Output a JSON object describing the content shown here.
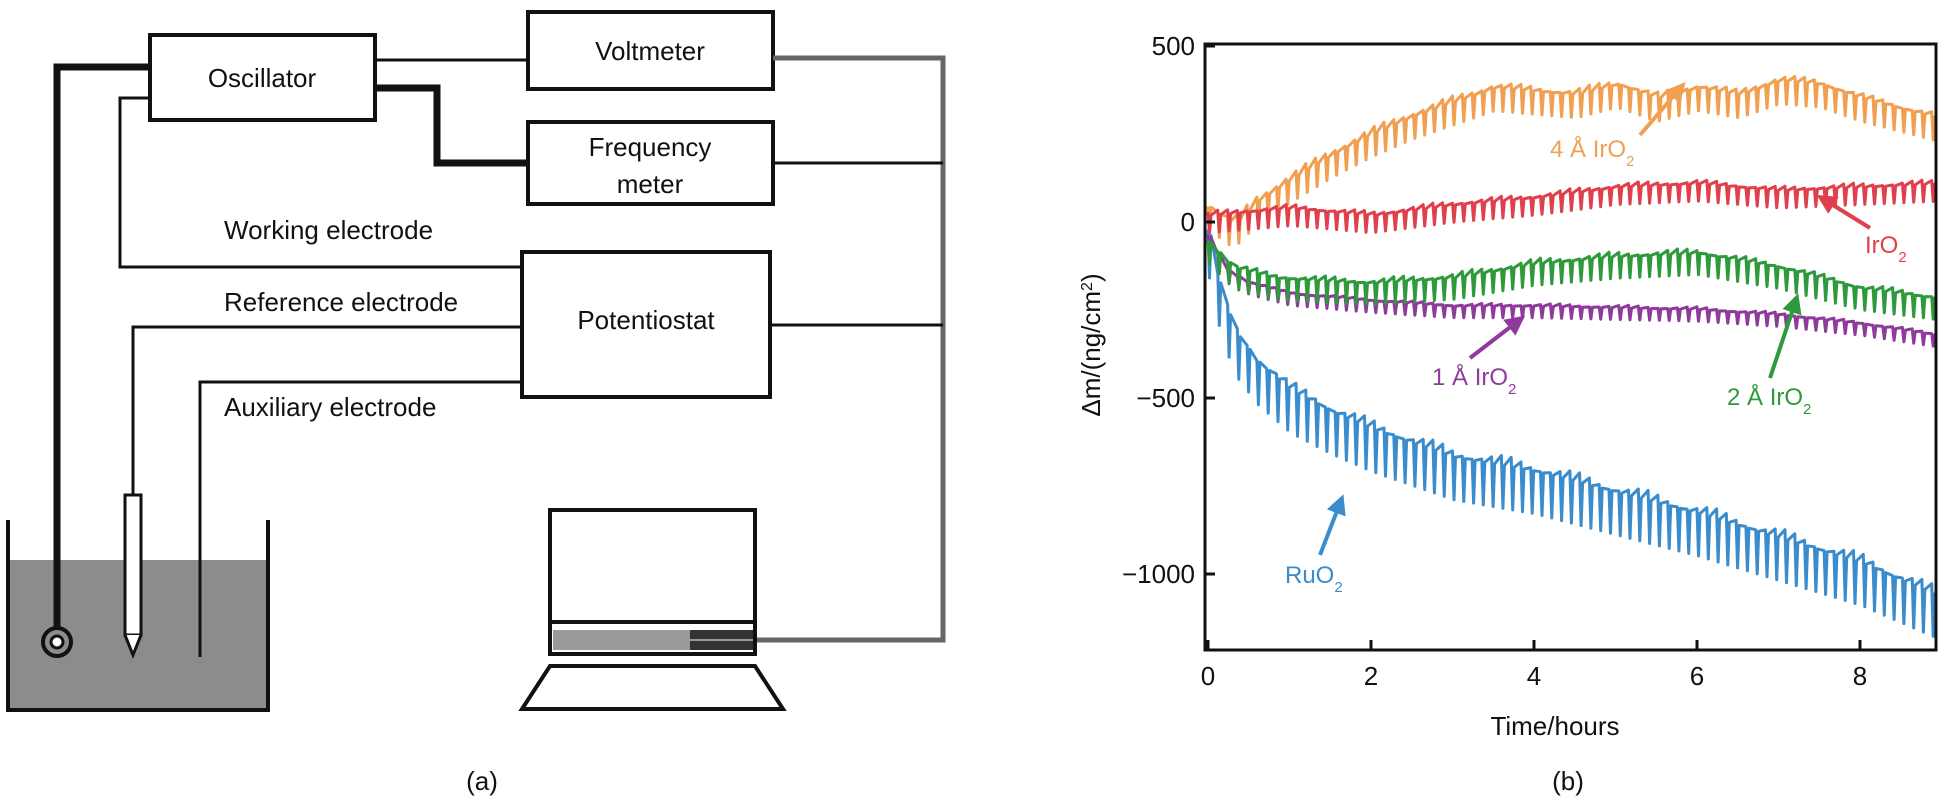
{
  "panel_a": {
    "label": "(a)",
    "oscillator": "Oscillator",
    "voltmeter": "Voltmeter",
    "frequency_meter_line1": "Frequency",
    "frequency_meter_line2": "meter",
    "working_electrode": "Working electrode",
    "reference_electrode": "Reference electrode",
    "potentiostat": "Potentiostat",
    "auxiliary_electrode": "Auxiliary electrode"
  },
  "panel_b": {
    "label": "(b)"
  },
  "colors": {
    "ruo2": "#3a8ccc",
    "iro2_1a": "#8e3b9c",
    "iro2_2a": "#2e9a3c",
    "iro2_4a": "#f0a050",
    "iro2": "#e0404c",
    "solution": "#8c8c8c"
  },
  "chart_data": {
    "type": "line",
    "title": "",
    "xlabel": "Time/hours",
    "ylabel": "Δm/(ng/cm²)",
    "ylabel_parts": {
      "prefix": "Δm/(ng/cm",
      "sup": "2",
      "suffix": ")"
    },
    "xlim": [
      0,
      9
    ],
    "ylim": [
      -1250,
      500
    ],
    "xticks": [
      0,
      2,
      4,
      6,
      8
    ],
    "xtick_labels": [
      "0",
      "2",
      "4",
      "6",
      "8"
    ],
    "yticks": [
      500,
      0,
      -500,
      -1000
    ],
    "ytick_labels": [
      "500",
      "0",
      "−500",
      "−1000"
    ],
    "series": [
      {
        "name": "RuO2",
        "color_key": "ruo2",
        "spike": 110,
        "x": [
          0,
          0.1,
          0.3,
          0.6,
          1,
          1.5,
          2,
          3,
          4,
          5,
          6,
          7,
          8,
          9
        ],
        "values": [
          -60,
          -180,
          -330,
          -420,
          -500,
          -560,
          -610,
          -690,
          -730,
          -790,
          -850,
          -920,
          -990,
          -1090
        ]
      },
      {
        "name": "1 Å IrO2",
        "color_key": "iro2_1a",
        "spike": 30,
        "x": [
          0,
          0.2,
          0.5,
          1,
          2,
          3,
          4,
          5,
          6,
          7,
          8,
          9
        ],
        "values": [
          -50,
          -140,
          -180,
          -210,
          -230,
          -245,
          -245,
          -250,
          -255,
          -270,
          -295,
          -330
        ]
      },
      {
        "name": "2 Å IrO2",
        "color_key": "iro2_2a",
        "spike": 55,
        "x": [
          0,
          0.3,
          0.8,
          1.5,
          2,
          3,
          4,
          5,
          6,
          7,
          8,
          9
        ],
        "values": [
          -70,
          -140,
          -170,
          -180,
          -185,
          -170,
          -130,
          -110,
          -100,
          -140,
          -200,
          -230
        ]
      },
      {
        "name": "4 Å IrO2",
        "color_key": "iro2_4a",
        "spike": 60,
        "x": [
          0,
          0.3,
          0.6,
          1,
          1.5,
          2,
          2.5,
          3,
          3.5,
          4,
          4.5,
          5,
          5.5,
          6,
          6.5,
          7,
          7.5,
          8,
          8.5,
          9
        ],
        "values": [
          30,
          -20,
          50,
          110,
          180,
          240,
          290,
          330,
          370,
          360,
          350,
          380,
          340,
          370,
          350,
          390,
          380,
          340,
          310,
          280
        ]
      },
      {
        "name": "IrO2",
        "color_key": "iro2",
        "spike": 45,
        "x": [
          0,
          0.5,
          1,
          1.5,
          2,
          3,
          4,
          5,
          6,
          7,
          8,
          9
        ],
        "values": [
          10,
          20,
          30,
          20,
          10,
          40,
          60,
          90,
          100,
          80,
          90,
          100
        ]
      }
    ],
    "annotations": [
      {
        "text": "4 Å IrO",
        "sub": "2",
        "color_key": "iro2_4a"
      },
      {
        "text": "IrO",
        "sub": "2",
        "color_key": "iro2"
      },
      {
        "text": "1 Å IrO",
        "sub": "2",
        "color_key": "iro2_1a"
      },
      {
        "text": "2 Å IrO",
        "sub": "2",
        "color_key": "iro2_2a"
      },
      {
        "text": "RuO",
        "sub": "2",
        "color_key": "ruo2"
      }
    ]
  }
}
